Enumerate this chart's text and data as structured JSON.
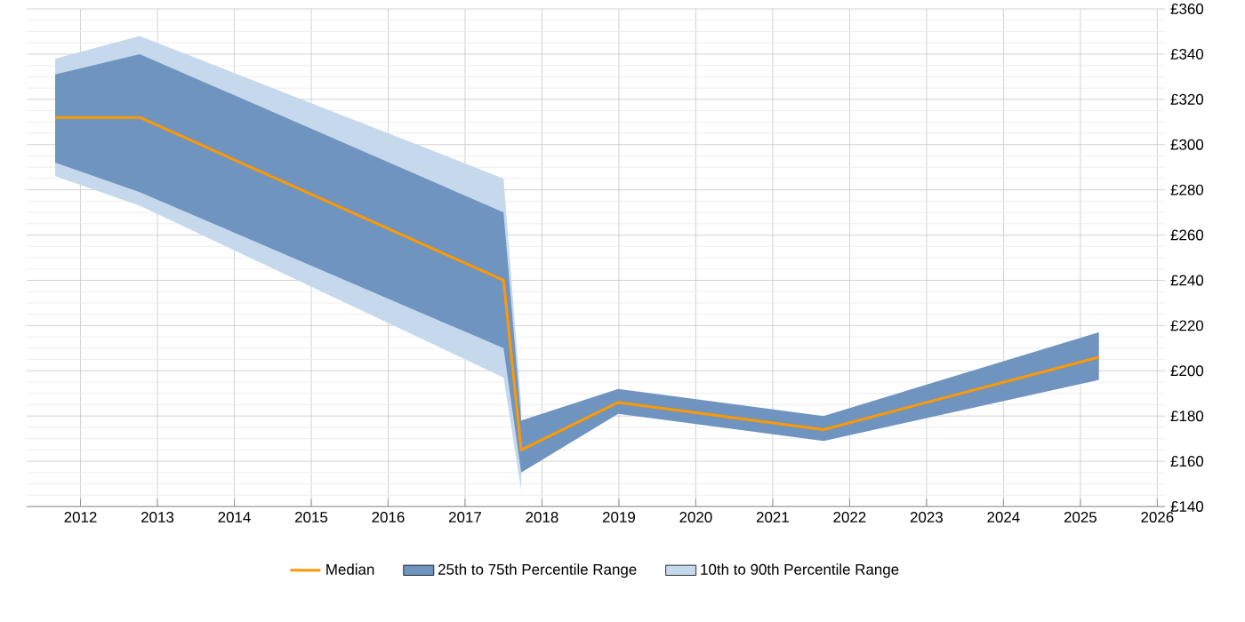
{
  "chart_data": {
    "type": "line",
    "xlim": [
      2011.3,
      2026.1
    ],
    "ylim": [
      140,
      360
    ],
    "xticks": [
      2012,
      2013,
      2014,
      2015,
      2016,
      2017,
      2018,
      2019,
      2020,
      2021,
      2022,
      2023,
      2024,
      2025,
      2026
    ],
    "yticks": [
      {
        "value": 140,
        "label": "£140"
      },
      {
        "value": 160,
        "label": "£160"
      },
      {
        "value": 180,
        "label": "£180"
      },
      {
        "value": 200,
        "label": "£200"
      },
      {
        "value": 220,
        "label": "£220"
      },
      {
        "value": 240,
        "label": "£240"
      },
      {
        "value": 260,
        "label": "£260"
      },
      {
        "value": 280,
        "label": "£280"
      },
      {
        "value": 300,
        "label": "£300"
      },
      {
        "value": 320,
        "label": "£320"
      },
      {
        "value": 340,
        "label": "£340"
      },
      {
        "value": 360,
        "label": "£360"
      }
    ],
    "x": [
      2011.67,
      2012.77,
      2017.5,
      2017.73,
      2018.99,
      2021.66,
      2025.24
    ],
    "grid": true,
    "legend": "bottom",
    "series": [
      {
        "name": "Median",
        "color": "#ff9900",
        "values": [
          312,
          312,
          240,
          165,
          186,
          174,
          206
        ]
      },
      {
        "name": "25th to 75th Percentile Range",
        "type": "area",
        "color": "#6f94bf",
        "values": [
          null,
          null,
          null,
          null,
          null,
          null,
          null
        ],
        "lower": [
          292,
          279,
          210,
          155,
          181,
          169,
          196
        ],
        "upper": [
          331,
          340,
          270,
          178,
          192,
          180,
          217
        ]
      },
      {
        "name": "10th to 90th Percentile Range",
        "type": "area",
        "color": "#c6d9ec",
        "values": [
          null,
          null,
          null,
          null,
          null,
          null,
          null
        ],
        "lower": [
          286,
          273,
          197,
          147,
          null,
          169,
          196
        ],
        "upper": [
          338,
          348,
          285,
          185,
          null,
          180,
          217
        ]
      }
    ]
  }
}
